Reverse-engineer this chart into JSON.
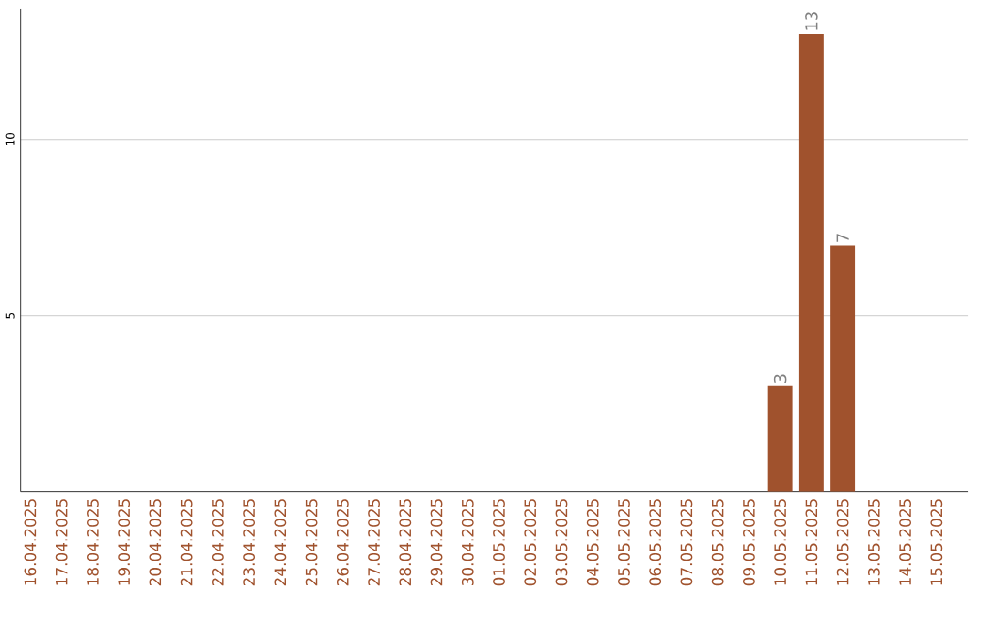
{
  "chart_data": {
    "type": "bar",
    "categories": [
      "16.04.2025",
      "17.04.2025",
      "18.04.2025",
      "19.04.2025",
      "20.04.2025",
      "21.04.2025",
      "22.04.2025",
      "23.04.2025",
      "24.04.2025",
      "25.04.2025",
      "26.04.2025",
      "27.04.2025",
      "28.04.2025",
      "29.04.2025",
      "30.04.2025",
      "01.05.2025",
      "02.05.2025",
      "03.05.2025",
      "04.05.2025",
      "05.05.2025",
      "06.05.2025",
      "07.05.2025",
      "08.05.2025",
      "09.05.2025",
      "10.05.2025",
      "11.05.2025",
      "12.05.2025",
      "13.05.2025",
      "14.05.2025",
      "15.05.2025"
    ],
    "values": [
      0,
      0,
      0,
      0,
      0,
      0,
      0,
      0,
      0,
      0,
      0,
      0,
      0,
      0,
      0,
      0,
      0,
      0,
      0,
      0,
      0,
      0,
      0,
      0,
      3,
      13,
      7,
      0,
      0,
      0
    ],
    "value_labels": [
      null,
      null,
      null,
      null,
      null,
      null,
      null,
      null,
      null,
      null,
      null,
      null,
      null,
      null,
      null,
      null,
      null,
      null,
      null,
      null,
      null,
      null,
      null,
      null,
      "3",
      "13",
      "7",
      null,
      null,
      null
    ],
    "color": "#a0522d",
    "ylim": [
      0,
      13.7
    ],
    "yticks": [
      5,
      10
    ],
    "grid": "y"
  }
}
